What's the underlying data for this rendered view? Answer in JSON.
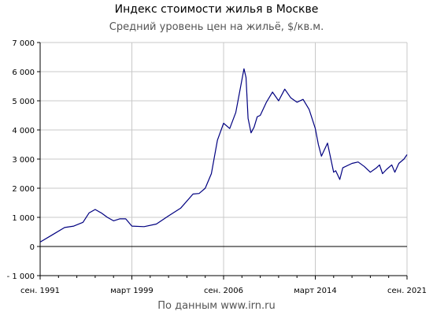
{
  "chart_data": {
    "type": "line",
    "title": "Индекс стоимости жилья в Москве",
    "subtitle": "Средний уровень цен на жильё, $/кв.м.",
    "source": "По данным www.irn.ru",
    "ylim": [
      -1000,
      7000
    ],
    "y_ticks": [
      -1000,
      0,
      1000,
      2000,
      3000,
      4000,
      5000,
      6000,
      7000
    ],
    "y_tick_labels": [
      "- 1 000",
      "0",
      "1 000",
      "2 000",
      "3 000",
      "4 000",
      "5 000",
      "6 000",
      "7 000"
    ],
    "x_ticks": [
      "1991-09",
      "1999-03",
      "2006-09",
      "2014-03",
      "2021-09"
    ],
    "x_tick_labels": [
      "сен. 1991",
      "март 1999",
      "сен. 2006",
      "март 2014",
      "сен. 2021"
    ],
    "grid": true,
    "line_color": "#000080",
    "series": [
      {
        "x": [
          "1991-09",
          "1992-09",
          "1993-09",
          "1994-06",
          "1995-03",
          "1995-09",
          "1996-03",
          "1996-09",
          "1997-03",
          "1997-09",
          "1998-03",
          "1998-09",
          "1999-03",
          "2000-03",
          "2001-03",
          "2002-03",
          "2003-03",
          "2004-03",
          "2004-09",
          "2005-03",
          "2005-09",
          "2006-03",
          "2006-09",
          "2007-03",
          "2007-09",
          "2008-01",
          "2008-05",
          "2008-07",
          "2008-09",
          "2008-12",
          "2009-03",
          "2009-06",
          "2009-09",
          "2010-03",
          "2010-09",
          "2011-03",
          "2011-09",
          "2012-03",
          "2012-09",
          "2013-03",
          "2013-09",
          "2014-03",
          "2014-06",
          "2014-09",
          "2015-03",
          "2015-09",
          "2015-11",
          "2016-03",
          "2016-06",
          "2017-03",
          "2017-09",
          "2018-03",
          "2018-09",
          "2019-03",
          "2019-06",
          "2019-09",
          "2020-01",
          "2020-06",
          "2020-09",
          "2021-01",
          "2021-06",
          "2021-09"
        ],
        "y": [
          150,
          400,
          650,
          700,
          830,
          1150,
          1270,
          1150,
          1000,
          880,
          950,
          950,
          700,
          680,
          770,
          1050,
          1320,
          1800,
          1820,
          2000,
          2500,
          3650,
          4230,
          4050,
          4600,
          5350,
          6100,
          5800,
          4400,
          3900,
          4100,
          4450,
          4500,
          4950,
          5300,
          5000,
          5400,
          5100,
          4950,
          5050,
          4700,
          4050,
          3500,
          3100,
          3550,
          2550,
          2600,
          2300,
          2700,
          2850,
          2900,
          2750,
          2550,
          2700,
          2800,
          2500,
          2650,
          2800,
          2550,
          2850,
          3000,
          3150
        ]
      }
    ]
  }
}
